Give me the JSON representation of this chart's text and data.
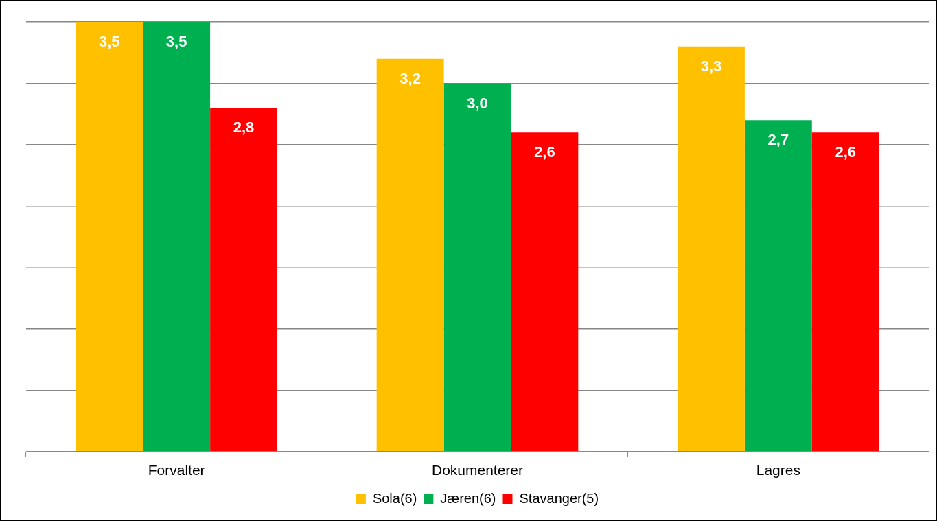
{
  "chart_data": {
    "type": "bar",
    "categories": [
      "Forvalter",
      "Dokumenterer",
      "Lagres"
    ],
    "series": [
      {
        "name": "Sola(6)",
        "color": "#ffc000",
        "values": [
          3.5,
          3.2,
          3.3
        ],
        "value_labels": [
          "3,5",
          "3,2",
          "3,3"
        ]
      },
      {
        "name": "Jæren(6)",
        "color": "#00b050",
        "values": [
          3.5,
          3.0,
          2.7
        ],
        "value_labels": [
          "3,5",
          "3,0",
          "2,7"
        ]
      },
      {
        "name": "Stavanger(5)",
        "color": "#ff0000",
        "values": [
          2.8,
          2.6,
          2.6
        ],
        "value_labels": [
          "2,8",
          "2,6",
          "2,6"
        ]
      }
    ],
    "grid": "y",
    "tick_labels": "x",
    "legend": "bottom"
  }
}
